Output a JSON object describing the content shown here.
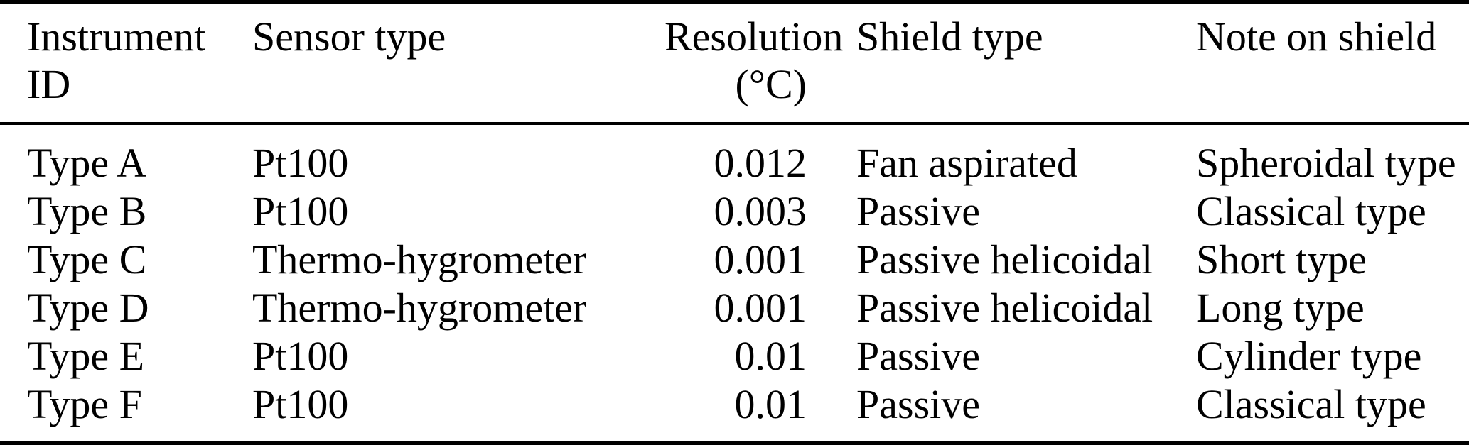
{
  "table": {
    "header": {
      "instrument_id_line1": "Instrument",
      "instrument_id_line2": "ID",
      "sensor_type": "Sensor type",
      "resolution_line1": "Resolution",
      "resolution_line2": "(°C)",
      "shield_type": "Shield type",
      "note_on_shield": "Note on shield"
    },
    "rows": [
      {
        "instrument_id": "Type A",
        "sensor_type": "Pt100",
        "resolution_c": "0.012",
        "shield_type": "Fan aspirated",
        "note_on_shield": "Spheroidal type"
      },
      {
        "instrument_id": "Type B",
        "sensor_type": "Pt100",
        "resolution_c": "0.003",
        "shield_type": "Passive",
        "note_on_shield": "Classical type"
      },
      {
        "instrument_id": "Type C",
        "sensor_type": "Thermo-hygrometer",
        "resolution_c": "0.001",
        "shield_type": "Passive helicoidal",
        "note_on_shield": "Short type"
      },
      {
        "instrument_id": "Type D",
        "sensor_type": "Thermo-hygrometer",
        "resolution_c": "0.001",
        "shield_type": "Passive helicoidal",
        "note_on_shield": "Long type"
      },
      {
        "instrument_id": "Type E",
        "sensor_type": "Pt100",
        "resolution_c": "0.01",
        "shield_type": "Passive",
        "note_on_shield": "Cylinder type"
      },
      {
        "instrument_id": "Type F",
        "sensor_type": "Pt100",
        "resolution_c": "0.01",
        "shield_type": "Passive",
        "note_on_shield": "Classical type"
      }
    ]
  },
  "colors": {
    "text": "#000000",
    "background": "#ffffff",
    "rule": "#000000"
  },
  "chart_data": {
    "type": "table",
    "columns": [
      "Instrument ID",
      "Sensor type",
      "Resolution (°C)",
      "Shield type",
      "Note on shield"
    ],
    "rows": [
      [
        "Type A",
        "Pt100",
        "0.012",
        "Fan aspirated",
        "Spheroidal type"
      ],
      [
        "Type B",
        "Pt100",
        "0.003",
        "Passive",
        "Classical type"
      ],
      [
        "Type C",
        "Thermo-hygrometer",
        "0.001",
        "Passive helicoidal",
        "Short type"
      ],
      [
        "Type D",
        "Thermo-hygrometer",
        "0.001",
        "Passive helicoidal",
        "Long type"
      ],
      [
        "Type E",
        "Pt100",
        "0.01",
        "Passive",
        "Cylinder type"
      ],
      [
        "Type F",
        "Pt100",
        "0.01",
        "Passive",
        "Classical type"
      ]
    ]
  }
}
